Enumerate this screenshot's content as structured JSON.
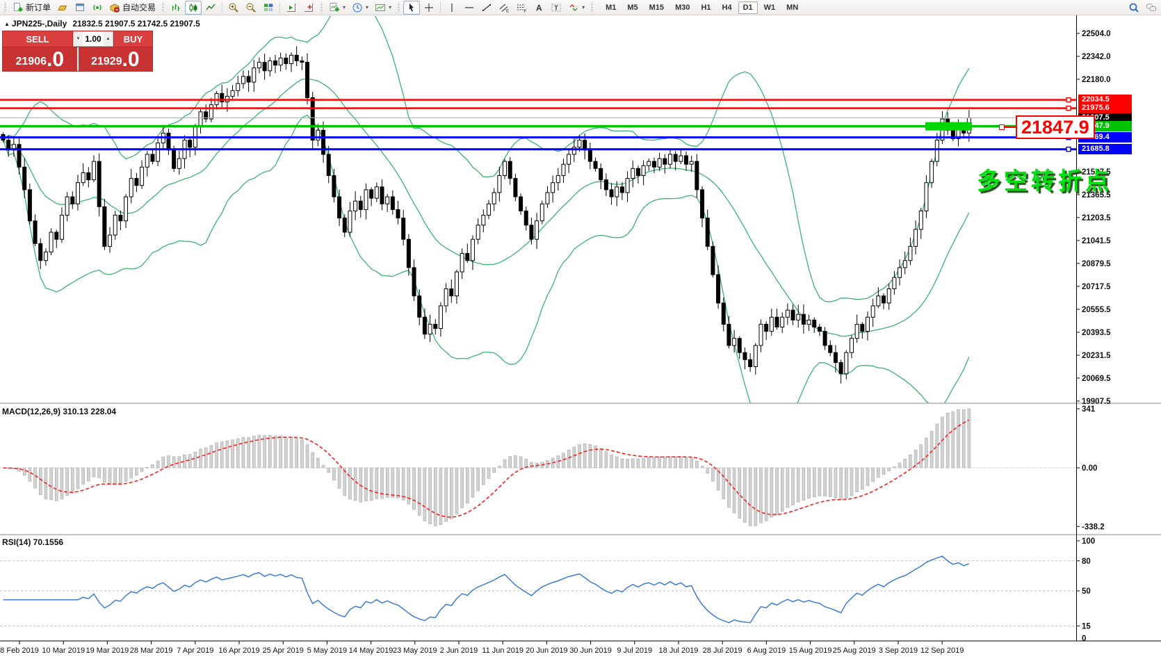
{
  "toolbar": {
    "new_order_label": "新订单",
    "auto_trading_label": "自动交易",
    "timeframes": [
      "M1",
      "M5",
      "M15",
      "M30",
      "H1",
      "H4",
      "D1",
      "W1",
      "MN"
    ],
    "active_timeframe": "D1"
  },
  "chart_header": {
    "symbol_period": "JPN225-,Daily",
    "ohlc": "21832.5 21907.5 21742.5 21907.5"
  },
  "trade_panel": {
    "sell_label": "SELL",
    "buy_label": "BUY",
    "volume": "1.00",
    "sell_price_int": "21906",
    "sell_price_frac": ".0",
    "buy_price_int": "21929",
    "buy_price_frac": ".0"
  },
  "chart": {
    "price_axis_ticks": [
      22504.0,
      22342.0,
      22180.0,
      21527.5,
      21365.5,
      21203.5,
      21041.5,
      20879.5,
      20717.5,
      20555.5,
      20393.5,
      20231.5,
      20069.5,
      19907.5
    ],
    "hlines": [
      {
        "price": 22034.5,
        "label": "22034.5",
        "color": "#ff0000",
        "width": 2.5
      },
      {
        "price": 21975.6,
        "label": "21975.6",
        "color": "#ff0000",
        "width": 2.5
      },
      {
        "price": 21847.9,
        "label": "21847.9",
        "color": "#00c200",
        "width": 3.5
      },
      {
        "price": 21769.4,
        "label": "21769.4",
        "color": "#0000ff",
        "width": 3
      },
      {
        "price": 21685.8,
        "label": "21685.8",
        "color": "#0000ff",
        "width": 3
      }
    ],
    "current_price": {
      "price": 21907.5,
      "label": "21907.5",
      "label_bg": "#000000"
    },
    "highlight": {
      "price": 21847.9,
      "color": "#00d600"
    },
    "callout_price": "21847.9",
    "annotation_text": "多空转折点",
    "colors": {
      "bollinger": "#3cb371",
      "bull": "#ffffff",
      "bear": "#000000"
    },
    "candle_closes": [
      21750,
      21680,
      21720,
      21560,
      21400,
      21180,
      21020,
      20900,
      20960,
      21100,
      21050,
      21220,
      21350,
      21300,
      21450,
      21520,
      21470,
      21600,
      21280,
      21000,
      21080,
      21220,
      21180,
      21350,
      21480,
      21430,
      21560,
      21650,
      21600,
      21730,
      21800,
      21680,
      21550,
      21620,
      21750,
      21700,
      21850,
      21950,
      21900,
      22000,
      22080,
      22020,
      22060,
      22100,
      22150,
      22200,
      22160,
      22260,
      22300,
      22240,
      22310,
      22280,
      22330,
      22290,
      22350,
      22310,
      22300,
      22050,
      21750,
      21820,
      21650,
      21500,
      21350,
      21200,
      21100,
      21250,
      21320,
      21260,
      21400,
      21340,
      21420,
      21300,
      21350,
      21260,
      21200,
      21050,
      20850,
      20650,
      20500,
      20380,
      20450,
      20420,
      20580,
      20700,
      20650,
      20820,
      20950,
      20900,
      21050,
      21150,
      21220,
      21300,
      21380,
      21500,
      21600,
      21480,
      21350,
      21250,
      21150,
      21050,
      21180,
      21300,
      21380,
      21450,
      21500,
      21580,
      21650,
      21700,
      21750,
      21680,
      21600,
      21550,
      21470,
      21400,
      21350,
      21420,
      21380,
      21480,
      21550,
      21500,
      21570,
      21600,
      21560,
      21620,
      21580,
      21650,
      21600,
      21640,
      21580,
      21600,
      21400,
      21200,
      21000,
      20800,
      20600,
      20450,
      20300,
      20350,
      20250,
      20200,
      20150,
      20300,
      20450,
      20400,
      20500,
      20430,
      20500,
      20550,
      20480,
      20520,
      20450,
      20480,
      20430,
      20400,
      20300,
      20250,
      20180,
      20100,
      20250,
      20350,
      20450,
      20400,
      20500,
      20580,
      20650,
      20600,
      20700,
      20780,
      20850,
      20900,
      21000,
      21120,
      21250,
      21450,
      21600,
      21750,
      21900,
      21820,
      21760,
      21850,
      21800,
      21907.5
    ]
  },
  "macd": {
    "label": "MACD(12,26,9) 310.13 228.04",
    "axis_ticks": [
      "341",
      "0.00",
      "-338.2"
    ],
    "histogram_color": "#d2d2d2",
    "signal_color": "#ff1e1e"
  },
  "rsi": {
    "label": "RSI(14) 70.1556",
    "axis_ticks": [
      "100",
      "80",
      "50",
      "15",
      "0"
    ],
    "levels": [
      80,
      50,
      15
    ],
    "line_color": "#3d7bd6"
  },
  "date_axis": {
    "labels": [
      "8 Feb 2019",
      "10 Mar 2019",
      "19 Mar 2019",
      "28 Mar 2019",
      "7 Apr 2019",
      "16 Apr 2019",
      "25 Apr 2019",
      "5 May 2019",
      "14 May 2019",
      "23 May 2019",
      "2 Jun 2019",
      "11 Jun 2019",
      "20 Jun 2019",
      "30 Jun 2019",
      "9 Jul 2019",
      "18 Jul 2019",
      "28 Jul 2019",
      "6 Aug 2019",
      "15 Aug 2019",
      "25 Aug 2019",
      "3 Sep 2019",
      "12 Sep 2019"
    ]
  }
}
